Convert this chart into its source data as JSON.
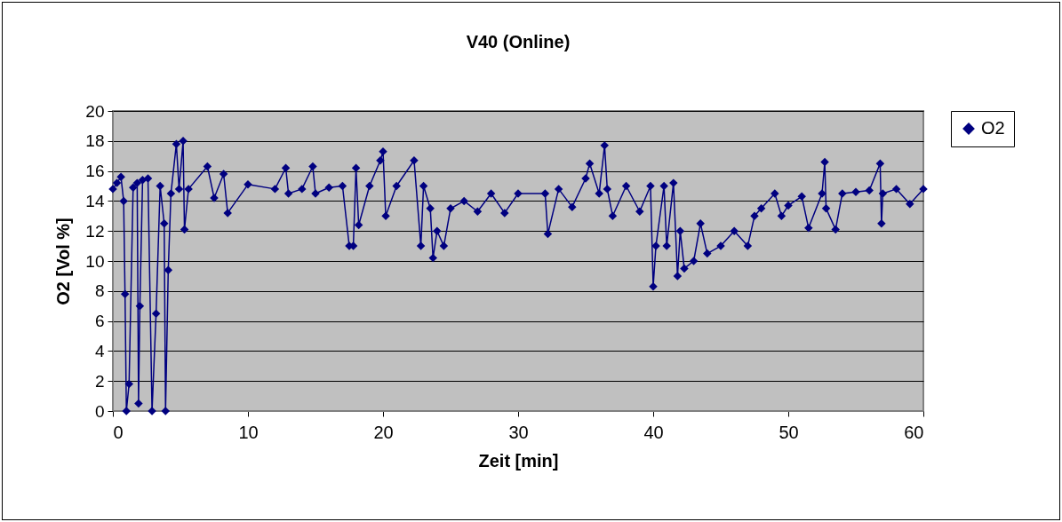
{
  "chart_data": {
    "type": "line",
    "title": "V40 (Online)",
    "xlabel": "Zeit [min]",
    "ylabel": "O2 [Vol %]",
    "xlim": [
      0,
      60
    ],
    "xticks": [
      0,
      10,
      20,
      30,
      40,
      50,
      60
    ],
    "ylim": [
      0,
      20
    ],
    "yticks": [
      0,
      2,
      4,
      6,
      8,
      10,
      12,
      14,
      16,
      18,
      20
    ],
    "grid": "y",
    "legend": "right",
    "marker": "diamond",
    "series": [
      {
        "name": "O2",
        "color": "#000080",
        "x": [
          0,
          0.3,
          0.6,
          0.8,
          0.9,
          1.0,
          1.2,
          1.5,
          1.8,
          1.9,
          2.0,
          2.2,
          2.6,
          2.9,
          3.2,
          3.5,
          3.8,
          3.9,
          4.1,
          4.3,
          4.7,
          4.9,
          5.2,
          5.3,
          5.6,
          7,
          7.5,
          8.2,
          8.5,
          10,
          12,
          12.8,
          13,
          14,
          14.8,
          15,
          16,
          17,
          17.5,
          17.8,
          18,
          18.2,
          19,
          19.8,
          20,
          20.2,
          21,
          22.3,
          22.8,
          23,
          23.5,
          23.7,
          24,
          24.5,
          25,
          26,
          27,
          28,
          29,
          30,
          32,
          32.2,
          33,
          34,
          35,
          35.3,
          36,
          36.4,
          36.6,
          37,
          38,
          39,
          39.8,
          40,
          40.2,
          40.8,
          41,
          41.5,
          41.8,
          42,
          42.3,
          43,
          43.5,
          44,
          45,
          46,
          47,
          47.5,
          48,
          49,
          49.5,
          50,
          51,
          51.5,
          52.5,
          52.7,
          52.8,
          53.5,
          54,
          55,
          56,
          56.8,
          56.9,
          57,
          58,
          59,
          60
        ],
        "values": [
          14.8,
          15.2,
          15.6,
          14,
          7.8,
          0,
          1.8,
          14.9,
          15.2,
          0.5,
          7,
          15.4,
          15.5,
          0,
          6.5,
          15,
          12.5,
          0,
          9.4,
          14.5,
          17.8,
          14.8,
          18.0,
          12.1,
          14.8,
          16.3,
          14.2,
          15.8,
          13.2,
          15.1,
          14.8,
          16.2,
          14.5,
          14.8,
          16.3,
          14.5,
          14.9,
          15.0,
          11.0,
          11.0,
          16.2,
          12.4,
          15,
          16.7,
          17.3,
          13,
          15,
          16.7,
          11.0,
          15,
          13.5,
          10.2,
          12,
          11,
          13.5,
          14,
          13.3,
          14.5,
          13.2,
          14.5,
          14.5,
          11.8,
          14.8,
          13.6,
          15.5,
          16.5,
          14.5,
          17.7,
          14.8,
          13,
          15,
          13.3,
          15,
          8.3,
          11,
          15,
          11,
          15.2,
          9,
          12,
          9.5,
          10,
          12.5,
          10.5,
          11,
          12,
          11,
          13,
          13.5,
          14.5,
          13,
          13.7,
          14.3,
          12.2,
          14.5,
          16.6,
          13.5,
          12.1,
          14.5,
          14.6,
          14.7,
          16.5,
          12.5,
          14.5,
          14.8,
          13.8,
          14.8
        ]
      }
    ]
  }
}
